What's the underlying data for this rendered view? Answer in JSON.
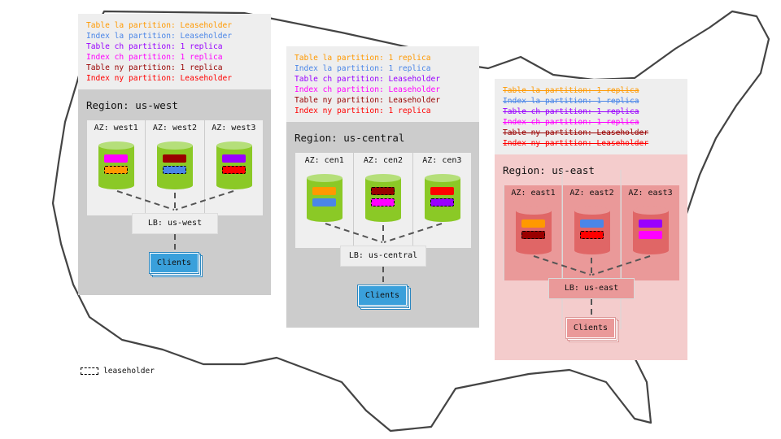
{
  "colors": {
    "table_la": "#ff9900",
    "index_la": "#4a86e8",
    "table_ch": "#9900ff",
    "index_ch": "#ff00ff",
    "table_ny": "#990000",
    "index_ny": "#ff0000",
    "healthy_node": "#8bc926",
    "healthy_node_top": "#b5df7a",
    "failed_node": "#e06666",
    "failed_node_top": "#ea9999",
    "clients": "#3aa0db",
    "failed_clients": "#ea9999"
  },
  "regions": [
    {
      "id": "us-west",
      "failed": false,
      "status_lines": [
        {
          "text": "Table la partition: Leaseholder",
          "color": "table_la",
          "struck": false
        },
        {
          "text": "Index la partition: Leaseholder",
          "color": "index_la",
          "struck": false
        },
        {
          "text": "Table ch partition: 1 replica",
          "color": "table_ch",
          "struck": false
        },
        {
          "text": "Index ch partition: 1 replica",
          "color": "index_ch",
          "struck": false
        },
        {
          "text": "Table ny partition: 1 replica",
          "color": "table_ny",
          "struck": false
        },
        {
          "text": "Index ny partition: Leaseholder",
          "color": "index_ny",
          "struck": false
        }
      ],
      "title": "Region: us-west",
      "azs": [
        {
          "label": "AZ: west1",
          "ranges": [
            {
              "color": "index_ch",
              "leaseholder": false
            },
            {
              "color": "table_la",
              "leaseholder": true
            }
          ]
        },
        {
          "label": "AZ: west2",
          "ranges": [
            {
              "color": "table_ny",
              "leaseholder": false
            },
            {
              "color": "index_la",
              "leaseholder": true
            }
          ]
        },
        {
          "label": "AZ: west3",
          "ranges": [
            {
              "color": "table_ch",
              "leaseholder": false
            },
            {
              "color": "index_ny",
              "leaseholder": true
            }
          ]
        }
      ],
      "lb": "LB: us-west",
      "clients": "Clients"
    },
    {
      "id": "us-central",
      "failed": false,
      "status_lines": [
        {
          "text": "Table la partition: 1 replica",
          "color": "table_la",
          "struck": false
        },
        {
          "text": "Index la partition: 1 replica",
          "color": "index_la",
          "struck": false
        },
        {
          "text": "Table ch partition: Leaseholder",
          "color": "table_ch",
          "struck": false
        },
        {
          "text": "Index ch partition: Leaseholder",
          "color": "index_ch",
          "struck": false
        },
        {
          "text": "Table ny partition: Leaseholder",
          "color": "table_ny",
          "struck": false
        },
        {
          "text": "Index ny partition: 1 replica",
          "color": "index_ny",
          "struck": false
        }
      ],
      "title": "Region: us-central",
      "azs": [
        {
          "label": "AZ: cen1",
          "ranges": [
            {
              "color": "table_la",
              "leaseholder": false
            },
            {
              "color": "index_la",
              "leaseholder": false
            }
          ]
        },
        {
          "label": "AZ: cen2",
          "ranges": [
            {
              "color": "table_ny",
              "leaseholder": true
            },
            {
              "color": "index_ch",
              "leaseholder": true
            }
          ]
        },
        {
          "label": "AZ: cen3",
          "ranges": [
            {
              "color": "index_ny",
              "leaseholder": false
            },
            {
              "color": "table_ch",
              "leaseholder": true
            }
          ]
        }
      ],
      "lb": "LB: us-central",
      "clients": "Clients"
    },
    {
      "id": "us-east",
      "failed": true,
      "status_lines": [
        {
          "text": "Table la partition: 1 replica",
          "color": "table_la",
          "struck": true
        },
        {
          "text": "Index la partition: 1 replica",
          "color": "index_la",
          "struck": true
        },
        {
          "text": "Table ch partition: 1 replica",
          "color": "table_ch",
          "struck": true
        },
        {
          "text": "Index ch partition: 1 replica",
          "color": "index_ch",
          "struck": true
        },
        {
          "text": "Table ny partition: Leaseholder",
          "color": "table_ny",
          "struck": true
        },
        {
          "text": "Index ny partition: Leaseholder",
          "color": "index_ny",
          "struck": true
        }
      ],
      "title": "Region: us-east",
      "azs": [
        {
          "label": "AZ: east1",
          "ranges": [
            {
              "color": "table_la",
              "leaseholder": false
            },
            {
              "color": "table_ny",
              "leaseholder": true
            }
          ]
        },
        {
          "label": "AZ: east2",
          "ranges": [
            {
              "color": "index_la",
              "leaseholder": false
            },
            {
              "color": "index_ny",
              "leaseholder": true
            }
          ]
        },
        {
          "label": "AZ: east3",
          "ranges": [
            {
              "color": "table_ch",
              "leaseholder": false
            },
            {
              "color": "index_ch",
              "leaseholder": false
            }
          ]
        }
      ],
      "lb": "LB: us-east",
      "clients": "Clients"
    }
  ],
  "legend": {
    "label": "leaseholder"
  }
}
